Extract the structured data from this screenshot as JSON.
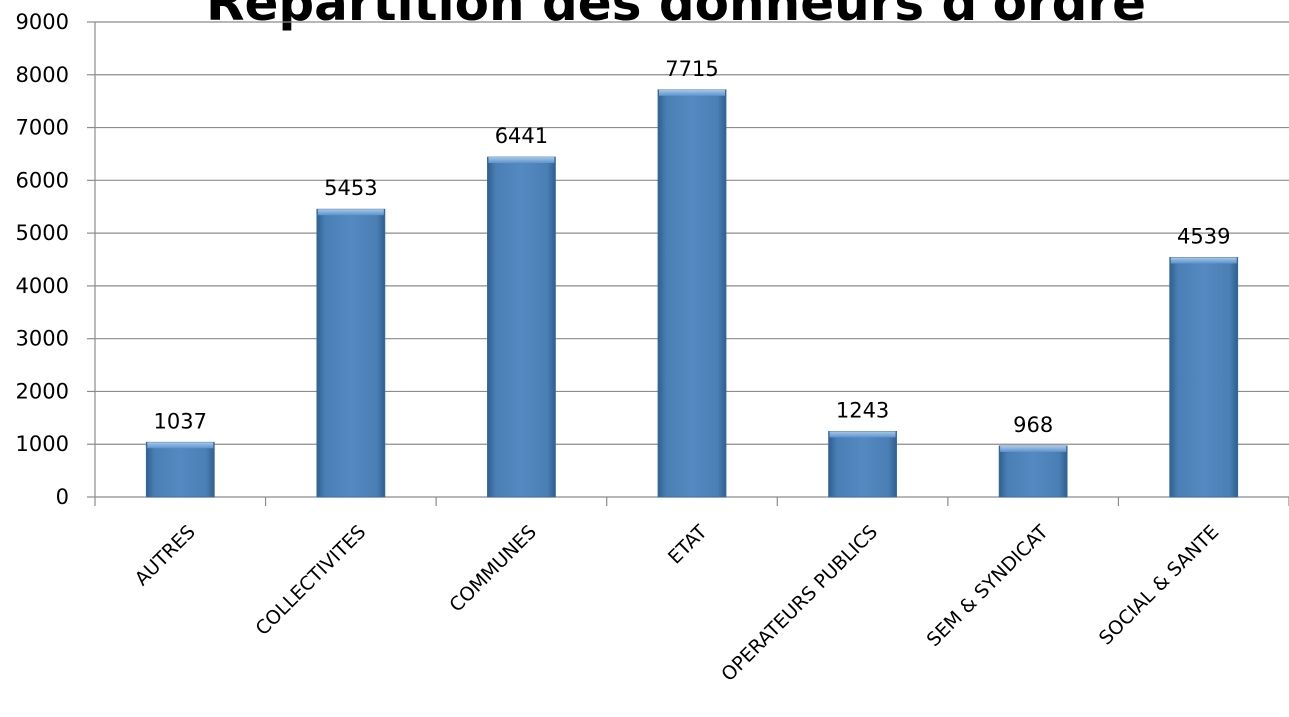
{
  "chart_data": {
    "type": "bar",
    "title": "Répartition des donneurs d'ordre",
    "categories": [
      "AUTRES",
      "COLLECTIVITES",
      "COMMUNES",
      "ETAT",
      "OPERATEURS PUBLICS",
      "SEM & SYNDICAT",
      "SOCIAL & SANTE"
    ],
    "values": [
      1037,
      5453,
      6441,
      7715,
      1243,
      968,
      4539
    ],
    "ylim": [
      0,
      9000
    ],
    "yticks": [
      0,
      1000,
      2000,
      3000,
      4000,
      5000,
      6000,
      7000,
      8000,
      9000
    ],
    "grid": true,
    "legend": "none",
    "bar_color": "#4a7fb5"
  }
}
